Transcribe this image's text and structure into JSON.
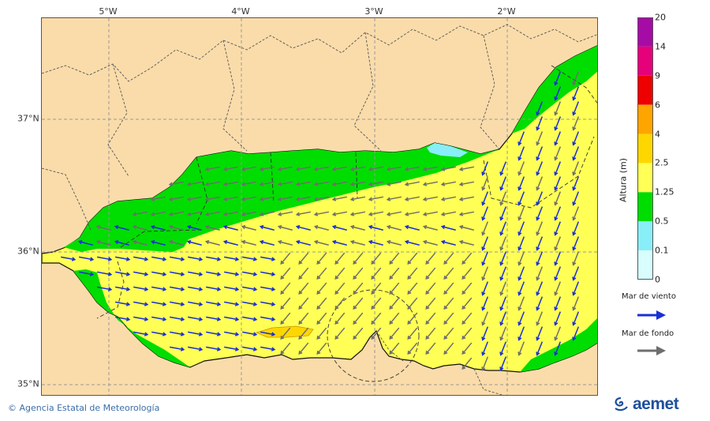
{
  "map": {
    "lon_labels": [
      "5°W",
      "4°W",
      "3°W",
      "2°W"
    ],
    "lat_labels": [
      "37°N",
      "36°N",
      "35°N"
    ],
    "colors": {
      "land": "#fadcaa",
      "border": "#555555",
      "grid": "#999999",
      "sea_wind_arrow": "#1a2fd6",
      "sea_swell_arrow": "#6e6e6e"
    }
  },
  "colorbar": {
    "title": "Altura (m)",
    "ticks": [
      "20",
      "14",
      "9",
      "6",
      "4",
      "2.5",
      "1.25",
      "0.5",
      "0.1",
      "0"
    ],
    "bands": [
      {
        "from": "14",
        "to": "20",
        "color": "#a60ba6"
      },
      {
        "from": "9",
        "to": "14",
        "color": "#e6007a"
      },
      {
        "from": "6",
        "to": "9",
        "color": "#ee0000"
      },
      {
        "from": "4",
        "to": "6",
        "color": "#ffa500"
      },
      {
        "from": "2.5",
        "to": "4",
        "color": "#ffd700"
      },
      {
        "from": "1.25",
        "to": "2.5",
        "color": "#ffff55"
      },
      {
        "from": "0.5",
        "to": "1.25",
        "color": "#00dd00"
      },
      {
        "from": "0.1",
        "to": "0.5",
        "color": "#88eef8"
      },
      {
        "from": "0",
        "to": "0.1",
        "color": "#d8fdfd"
      }
    ]
  },
  "legend": {
    "wind_sea": {
      "label": "Mar de viento",
      "color": "#1a2fd6"
    },
    "swell": {
      "label": "Mar de fondo",
      "color": "#6e6e6e"
    }
  },
  "footer": {
    "credit": "Agencia Estatal de Meteorología",
    "logo_text": "aemet"
  }
}
